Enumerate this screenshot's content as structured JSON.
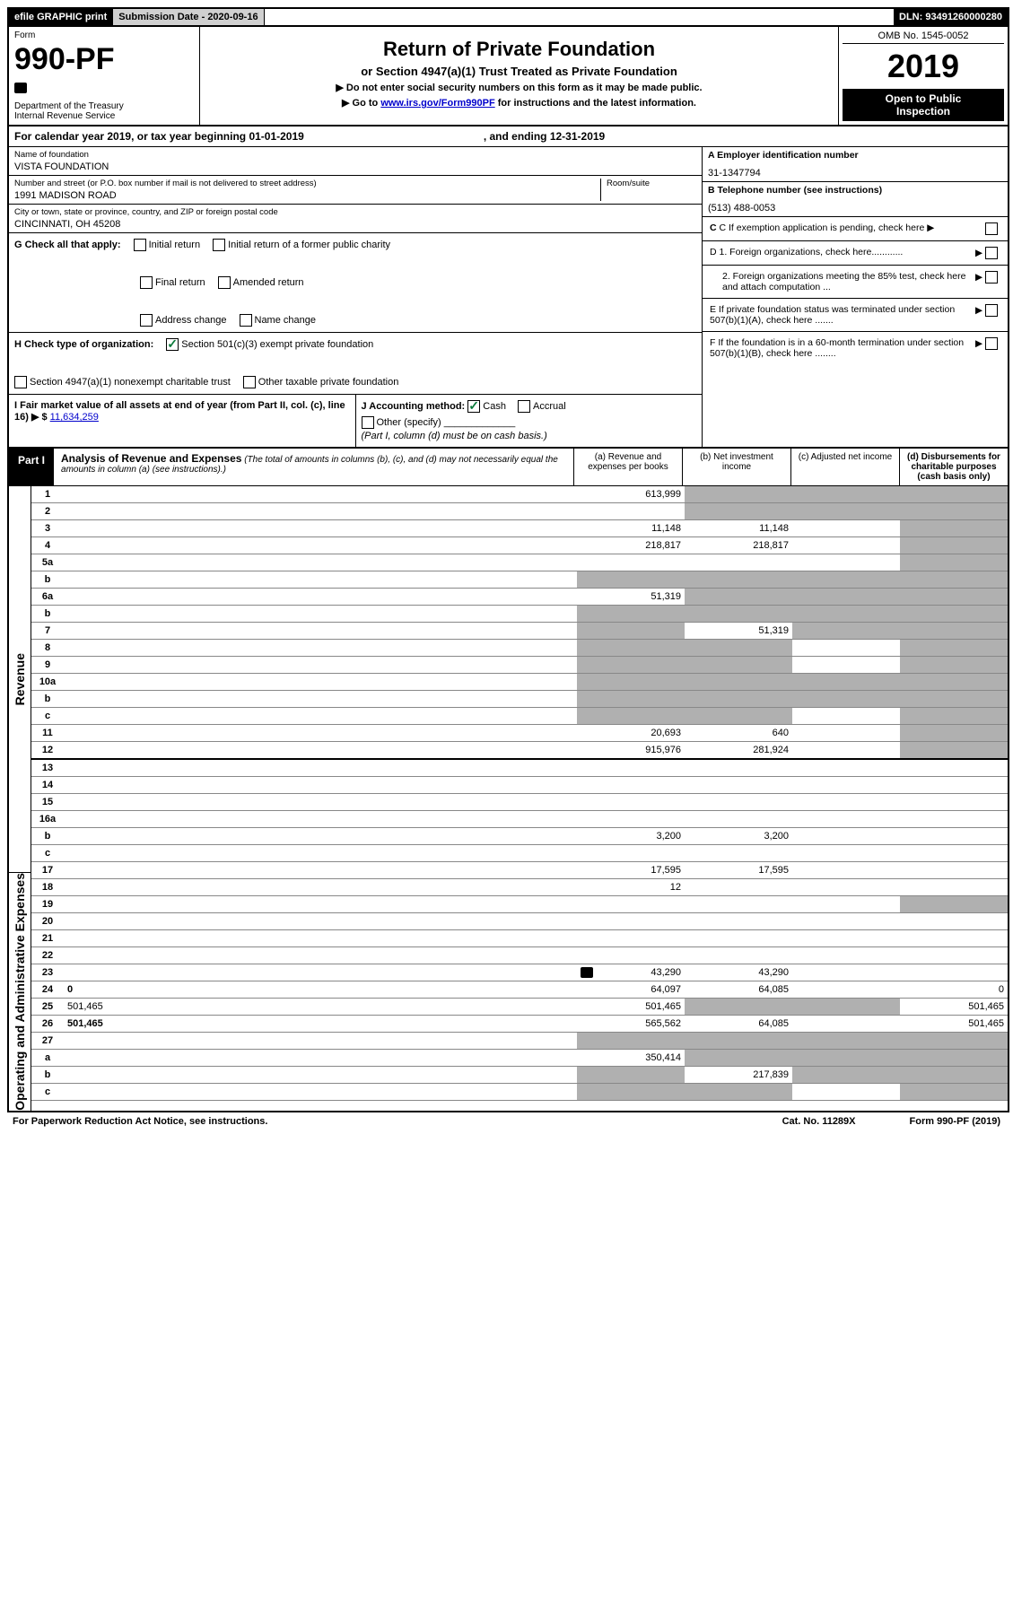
{
  "top": {
    "efile": "efile GRAPHIC print",
    "submission_label": "Submission Date - 2020-09-16",
    "dln": "DLN: 93491260000280"
  },
  "header": {
    "form_word": "Form",
    "form_num": "990-PF",
    "dept": "Department of the Treasury",
    "irs": "Internal Revenue Service",
    "title": "Return of Private Foundation",
    "subtitle": "or Section 4947(a)(1) Trust Treated as Private Foundation",
    "note1": "▶ Do not enter social security numbers on this form as it may be made public.",
    "note2_pre": "▶ Go to ",
    "note2_link": "www.irs.gov/Form990PF",
    "note2_post": " for instructions and the latest information.",
    "omb": "OMB No. 1545-0052",
    "year": "2019",
    "inspect1": "Open to Public",
    "inspect2": "Inspection"
  },
  "cal": {
    "line_a": "For calendar year 2019, or tax year beginning 01-01-2019",
    "line_b": ", and ending 12-31-2019"
  },
  "info": {
    "name_label": "Name of foundation",
    "name": "VISTA FOUNDATION",
    "addr_label": "Number and street (or P.O. box number if mail is not delivered to street address)",
    "room_label": "Room/suite",
    "addr": "1991 MADISON ROAD",
    "city_label": "City or town, state or province, country, and ZIP or foreign postal code",
    "city": "CINCINNATI, OH  45208",
    "ein_label": "A Employer identification number",
    "ein": "31-1347794",
    "phone_label": "B Telephone number (see instructions)",
    "phone": "(513) 488-0053",
    "c_label": "C If exemption application is pending, check here",
    "d1": "D 1. Foreign organizations, check here............",
    "d2": "2. Foreign organizations meeting the 85% test, check here and attach computation ...",
    "e": "E  If private foundation status was terminated under section 507(b)(1)(A), check here .......",
    "f": "F  If the foundation is in a 60-month termination under section 507(b)(1)(B), check here ........"
  },
  "g": {
    "label": "G Check all that apply:",
    "o1": "Initial return",
    "o2": "Initial return of a former public charity",
    "o3": "Final return",
    "o4": "Amended return",
    "o5": "Address change",
    "o6": "Name change"
  },
  "h": {
    "label": "H Check type of organization:",
    "o1": "Section 501(c)(3) exempt private foundation",
    "o2": "Section 4947(a)(1) nonexempt charitable trust",
    "o3": "Other taxable private foundation"
  },
  "i": {
    "label": "I Fair market value of all assets at end of year (from Part II, col. (c), line 16) ▶ $",
    "value": "11,634,259"
  },
  "j": {
    "label": "J Accounting method:",
    "cash": "Cash",
    "accrual": "Accrual",
    "other": "Other (specify)",
    "note": "(Part I, column (d) must be on cash basis.)"
  },
  "part1": {
    "label": "Part I",
    "title": "Analysis of Revenue and Expenses",
    "note": "(The total of amounts in columns (b), (c), and (d) may not necessarily equal the amounts in column (a) (see instructions).)",
    "col_a": "(a)    Revenue and expenses per books",
    "col_b": "(b)   Net investment income",
    "col_c": "(c)   Adjusted net income",
    "col_d": "(d)   Disbursements for charitable purposes (cash basis only)"
  },
  "sides": {
    "revenue": "Revenue",
    "opex": "Operating and Administrative Expenses"
  },
  "rows": [
    {
      "n": "1",
      "d": "",
      "a": "613,999",
      "b": "",
      "c": "",
      "sb": true,
      "sc": true,
      "sd": true
    },
    {
      "n": "2",
      "d": "",
      "a": "",
      "b": "",
      "c": "",
      "sb": true,
      "sc": true,
      "sd": true
    },
    {
      "n": "3",
      "d": "",
      "a": "11,148",
      "b": "11,148",
      "c": "",
      "sd": true
    },
    {
      "n": "4",
      "d": "",
      "a": "218,817",
      "b": "218,817",
      "c": "",
      "sd": true
    },
    {
      "n": "5a",
      "d": "",
      "a": "",
      "b": "",
      "c": "",
      "sd": true
    },
    {
      "n": "b",
      "d": "",
      "a": "",
      "b": "",
      "c": "",
      "sa": true,
      "sb": true,
      "sc": true,
      "sd": true
    },
    {
      "n": "6a",
      "d": "",
      "a": "51,319",
      "b": "",
      "c": "",
      "sb": true,
      "sc": true,
      "sd": true
    },
    {
      "n": "b",
      "d": "",
      "a": "",
      "b": "",
      "c": "",
      "sa": true,
      "sb": true,
      "sc": true,
      "sd": true
    },
    {
      "n": "7",
      "d": "",
      "a": "",
      "b": "51,319",
      "c": "",
      "sa": true,
      "sc": true,
      "sd": true
    },
    {
      "n": "8",
      "d": "",
      "a": "",
      "b": "",
      "c": "",
      "sa": true,
      "sb": true,
      "sd": true
    },
    {
      "n": "9",
      "d": "",
      "a": "",
      "b": "",
      "c": "",
      "sa": true,
      "sb": true,
      "sd": true
    },
    {
      "n": "10a",
      "d": "",
      "a": "",
      "b": "",
      "c": "",
      "sa": true,
      "sb": true,
      "sc": true,
      "sd": true
    },
    {
      "n": "b",
      "d": "",
      "a": "",
      "b": "",
      "c": "",
      "sa": true,
      "sb": true,
      "sc": true,
      "sd": true
    },
    {
      "n": "c",
      "d": "",
      "a": "",
      "b": "",
      "c": "",
      "sa": true,
      "sb": true,
      "sd": true
    },
    {
      "n": "11",
      "d": "",
      "a": "20,693",
      "b": "640",
      "c": "",
      "sd": true
    },
    {
      "n": "12",
      "d": "",
      "a": "915,976",
      "b": "281,924",
      "c": "",
      "sd": true,
      "bold": true
    }
  ],
  "rows2": [
    {
      "n": "13",
      "d": "",
      "a": "",
      "b": "",
      "c": ""
    },
    {
      "n": "14",
      "d": "",
      "a": "",
      "b": "",
      "c": ""
    },
    {
      "n": "15",
      "d": "",
      "a": "",
      "b": "",
      "c": ""
    },
    {
      "n": "16a",
      "d": "",
      "a": "",
      "b": "",
      "c": ""
    },
    {
      "n": "b",
      "d": "",
      "a": "3,200",
      "b": "3,200",
      "c": ""
    },
    {
      "n": "c",
      "d": "",
      "a": "",
      "b": "",
      "c": ""
    },
    {
      "n": "17",
      "d": "",
      "a": "17,595",
      "b": "17,595",
      "c": ""
    },
    {
      "n": "18",
      "d": "",
      "a": "12",
      "b": "",
      "c": ""
    },
    {
      "n": "19",
      "d": "",
      "a": "",
      "b": "",
      "c": "",
      "sd": true
    },
    {
      "n": "20",
      "d": "",
      "a": "",
      "b": "",
      "c": ""
    },
    {
      "n": "21",
      "d": "",
      "a": "",
      "b": "",
      "c": ""
    },
    {
      "n": "22",
      "d": "",
      "a": "",
      "b": "",
      "c": ""
    },
    {
      "n": "23",
      "d": "",
      "a": "43,290",
      "b": "43,290",
      "c": "",
      "icon": true
    },
    {
      "n": "24",
      "d": "0",
      "a": "64,097",
      "b": "64,085",
      "c": "",
      "bold": true
    },
    {
      "n": "25",
      "d": "501,465",
      "a": "501,465",
      "b": "",
      "c": "",
      "sb": true,
      "sc": true
    },
    {
      "n": "26",
      "d": "501,465",
      "a": "565,562",
      "b": "64,085",
      "c": "",
      "bold": true
    },
    {
      "n": "27",
      "d": "",
      "a": "",
      "b": "",
      "c": "",
      "sa": true,
      "sb": true,
      "sc": true,
      "sd": true
    },
    {
      "n": "a",
      "d": "",
      "a": "350,414",
      "b": "",
      "c": "",
      "sb": true,
      "sc": true,
      "sd": true,
      "bold": true
    },
    {
      "n": "b",
      "d": "",
      "a": "",
      "b": "217,839",
      "c": "",
      "sa": true,
      "sc": true,
      "sd": true,
      "bold": true
    },
    {
      "n": "c",
      "d": "",
      "a": "",
      "b": "",
      "c": "",
      "sa": true,
      "sb": true,
      "sd": true,
      "bold": true
    }
  ],
  "footer": {
    "pra": "For Paperwork Reduction Act Notice, see instructions.",
    "cat": "Cat. No. 11289X",
    "form": "Form 990-PF (2019)"
  }
}
